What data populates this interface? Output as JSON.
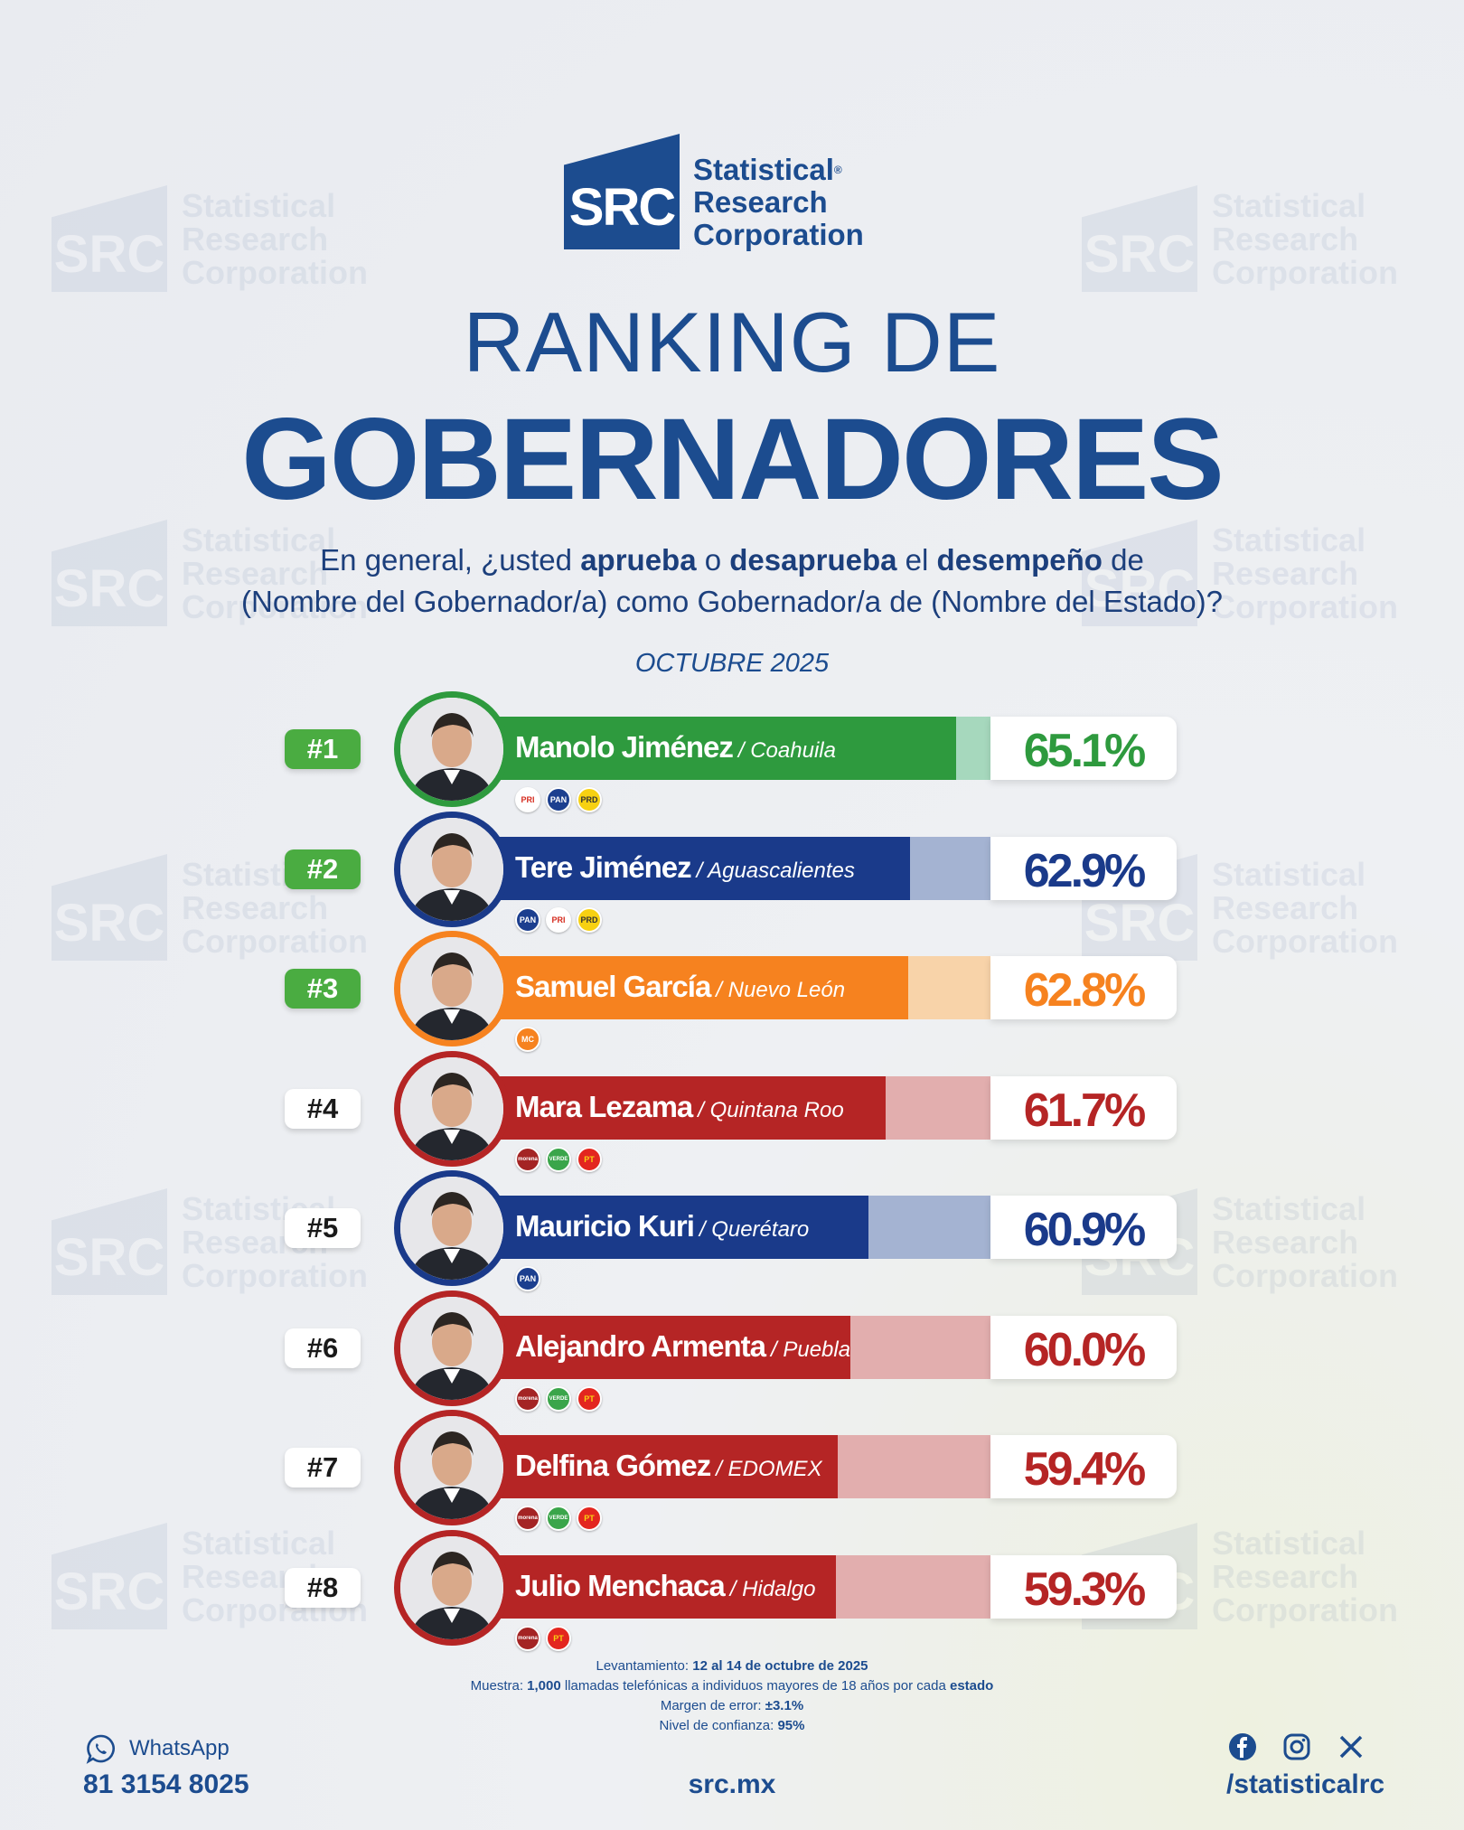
{
  "brand": {
    "abbr": "SRC",
    "name_lines": [
      "Statistical",
      "Research",
      "Corporation"
    ],
    "registered": "®",
    "color": "#1c4c8f"
  },
  "title_line1": "RANKING DE",
  "title_line2": "GOBERNADORES",
  "question": {
    "p1": "En general, ¿usted ",
    "b1": "aprueba",
    "p2": " o ",
    "b2": "desaprueba",
    "p3": " el ",
    "b3": "desempeño",
    "p4": " de",
    "line2": "(Nombre del Gobernador/a) como Gobernador/a de (Nombre del Estado)?"
  },
  "month": "OCTUBRE 2025",
  "chart_data": {
    "type": "bar",
    "title": "RANKING DE GOBERNADORES",
    "categories": [
      "Manolo Jiménez",
      "Tere Jiménez",
      "Samuel García",
      "Mara Lezama",
      "Mauricio Kuri",
      "Alejandro Armenta",
      "Delfina Gómez",
      "Julio Menchaca"
    ],
    "values": [
      65.1,
      62.9,
      62.8,
      61.7,
      60.9,
      60.0,
      59.4,
      59.3
    ],
    "xlim": [
      0,
      100
    ],
    "rows": [
      {
        "rank": "#1",
        "name": "Manolo Jiménez",
        "state": "/ Coahuila",
        "value": 65.1,
        "pct_label": "65.1%",
        "color": "#2e9a3e",
        "light": "#a6d8bd",
        "pct_color": "#2e9a3e",
        "rank_style": "green",
        "parties": [
          {
            "label": "PRI",
            "bg": "#ffffff",
            "fg": "#d52b1e"
          },
          {
            "label": "PAN",
            "bg": "#1c3f8f",
            "fg": "#ffffff"
          },
          {
            "label": "PRD",
            "bg": "#f7d112",
            "fg": "#333333"
          }
        ]
      },
      {
        "rank": "#2",
        "name": "Tere Jiménez",
        "state": "/ Aguascalientes",
        "value": 62.9,
        "pct_label": "62.9%",
        "color": "#1a3a8a",
        "light": "#a4b3d2",
        "pct_color": "#1a3a8a",
        "rank_style": "green",
        "parties": [
          {
            "label": "PAN",
            "bg": "#1c3f8f",
            "fg": "#ffffff"
          },
          {
            "label": "PRI",
            "bg": "#ffffff",
            "fg": "#d52b1e"
          },
          {
            "label": "PRD",
            "bg": "#f7d112",
            "fg": "#333333"
          }
        ]
      },
      {
        "rank": "#3",
        "name": "Samuel García",
        "state": "/ Nuevo León",
        "value": 62.8,
        "pct_label": "62.8%",
        "color": "#f6821f",
        "light": "#f8d3a9",
        "pct_color": "#f6821f",
        "rank_style": "green",
        "parties": [
          {
            "label": "MC",
            "bg": "#f6821f",
            "fg": "#ffffff"
          }
        ]
      },
      {
        "rank": "#4",
        "name": "Mara Lezama",
        "state": "/ Quintana Roo",
        "value": 61.7,
        "pct_label": "61.7%",
        "color": "#b52525",
        "light": "#e2aeae",
        "pct_color": "#b52525",
        "rank_style": "white",
        "parties": [
          {
            "label": "morena",
            "bg": "#a42424",
            "fg": "#ffffff"
          },
          {
            "label": "VERDE",
            "bg": "#3aa54a",
            "fg": "#ffffff"
          },
          {
            "label": "PT",
            "bg": "#e3261f",
            "fg": "#f7d112"
          }
        ]
      },
      {
        "rank": "#5",
        "name": "Mauricio Kuri",
        "state": "/ Querétaro",
        "value": 60.9,
        "pct_label": "60.9%",
        "color": "#1a3a8a",
        "light": "#a4b3d2",
        "pct_color": "#1a3a8a",
        "rank_style": "white",
        "parties": [
          {
            "label": "PAN",
            "bg": "#1c3f8f",
            "fg": "#ffffff"
          }
        ]
      },
      {
        "rank": "#6",
        "name": "Alejandro Armenta",
        "state": "/ Puebla",
        "value": 60.0,
        "pct_label": "60.0%",
        "color": "#b52525",
        "light": "#e2aeae",
        "pct_color": "#b52525",
        "rank_style": "white",
        "parties": [
          {
            "label": "morena",
            "bg": "#a42424",
            "fg": "#ffffff"
          },
          {
            "label": "VERDE",
            "bg": "#3aa54a",
            "fg": "#ffffff"
          },
          {
            "label": "PT",
            "bg": "#e3261f",
            "fg": "#f7d112"
          }
        ]
      },
      {
        "rank": "#7",
        "name": "Delfina Gómez",
        "state": "/ EDOMEX",
        "value": 59.4,
        "pct_label": "59.4%",
        "color": "#b52525",
        "light": "#e2aeae",
        "pct_color": "#b52525",
        "rank_style": "white",
        "parties": [
          {
            "label": "morena",
            "bg": "#a42424",
            "fg": "#ffffff"
          },
          {
            "label": "VERDE",
            "bg": "#3aa54a",
            "fg": "#ffffff"
          },
          {
            "label": "PT",
            "bg": "#e3261f",
            "fg": "#f7d112"
          }
        ]
      },
      {
        "rank": "#8",
        "name": "Julio Menchaca",
        "state": "/ Hidalgo",
        "value": 59.3,
        "pct_label": "59.3%",
        "color": "#b52525",
        "light": "#e2aeae",
        "pct_color": "#b52525",
        "rank_style": "white",
        "parties": [
          {
            "label": "morena",
            "bg": "#a42424",
            "fg": "#ffffff"
          },
          {
            "label": "PT",
            "bg": "#e3261f",
            "fg": "#f7d112"
          }
        ]
      }
    ]
  },
  "notes": {
    "l1_label": "Levantamiento: ",
    "l1_value": "12 al 14 de octubre de 2025",
    "l2_label": "Muestra: ",
    "l2_value": "1,000",
    "l2_mid": " llamadas telefónicas a individuos mayores de 18 años por cada ",
    "l2_end": "estado",
    "l3_label": "Margen de error: ",
    "l3_value": "±3.1%",
    "l4_label": "Nivel de confianza: ",
    "l4_value": "95%"
  },
  "footer": {
    "whatsapp_label": "WhatsApp",
    "phone": "81 3154 8025",
    "site": "src.mx",
    "handle": "/statisticalrc",
    "icons": [
      "whatsapp-icon",
      "facebook-icon",
      "instagram-icon",
      "x-icon"
    ]
  }
}
